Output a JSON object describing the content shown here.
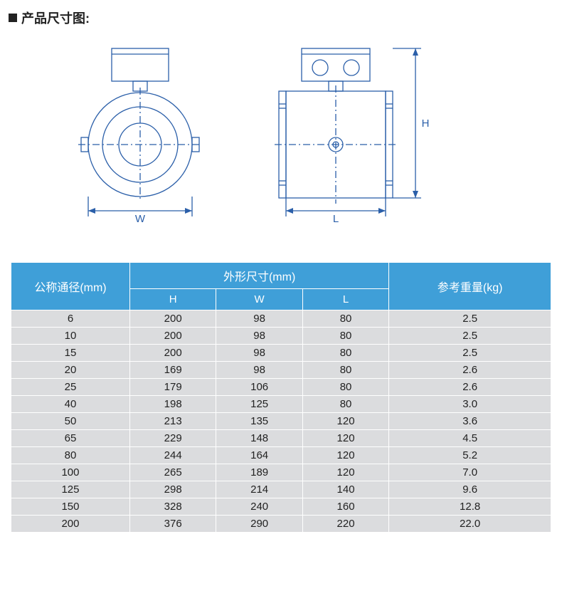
{
  "title": "产品尺寸图:",
  "diagram": {
    "stroke": "#2b5fa9",
    "labels": {
      "W": "W",
      "L": "L",
      "H": "H"
    }
  },
  "table": {
    "header_bg": "#3f9fd8",
    "header_fg": "#ffffff",
    "row_bg": "#dbdcde",
    "border": "#ffffff",
    "col_widths": [
      "22%",
      "16%",
      "16%",
      "16%",
      "30%"
    ],
    "headers": {
      "nominal": "公称通径(mm)",
      "dims": "外形尺寸(mm)",
      "H": "H",
      "W": "W",
      "L": "L",
      "weight": "参考重量(kg)"
    },
    "rows": [
      {
        "dn": "6",
        "H": "200",
        "W": "98",
        "L": "80",
        "kg": "2.5"
      },
      {
        "dn": "10",
        "H": "200",
        "W": "98",
        "L": "80",
        "kg": "2.5"
      },
      {
        "dn": "15",
        "H": "200",
        "W": "98",
        "L": "80",
        "kg": "2.5"
      },
      {
        "dn": "20",
        "H": "169",
        "W": "98",
        "L": "80",
        "kg": "2.6"
      },
      {
        "dn": "25",
        "H": "179",
        "W": "106",
        "L": "80",
        "kg": "2.6"
      },
      {
        "dn": "40",
        "H": "198",
        "W": "125",
        "L": "80",
        "kg": "3.0"
      },
      {
        "dn": "50",
        "H": "213",
        "W": "135",
        "L": "120",
        "kg": "3.6"
      },
      {
        "dn": "65",
        "H": "229",
        "W": "148",
        "L": "120",
        "kg": "4.5"
      },
      {
        "dn": "80",
        "H": "244",
        "W": "164",
        "L": "120",
        "kg": "5.2"
      },
      {
        "dn": "100",
        "H": "265",
        "W": "189",
        "L": "120",
        "kg": "7.0"
      },
      {
        "dn": "125",
        "H": "298",
        "W": "214",
        "L": "140",
        "kg": "9.6"
      },
      {
        "dn": "150",
        "H": "328",
        "W": "240",
        "L": "160",
        "kg": "12.8"
      },
      {
        "dn": "200",
        "H": "376",
        "W": "290",
        "L": "220",
        "kg": "22.0"
      }
    ]
  }
}
